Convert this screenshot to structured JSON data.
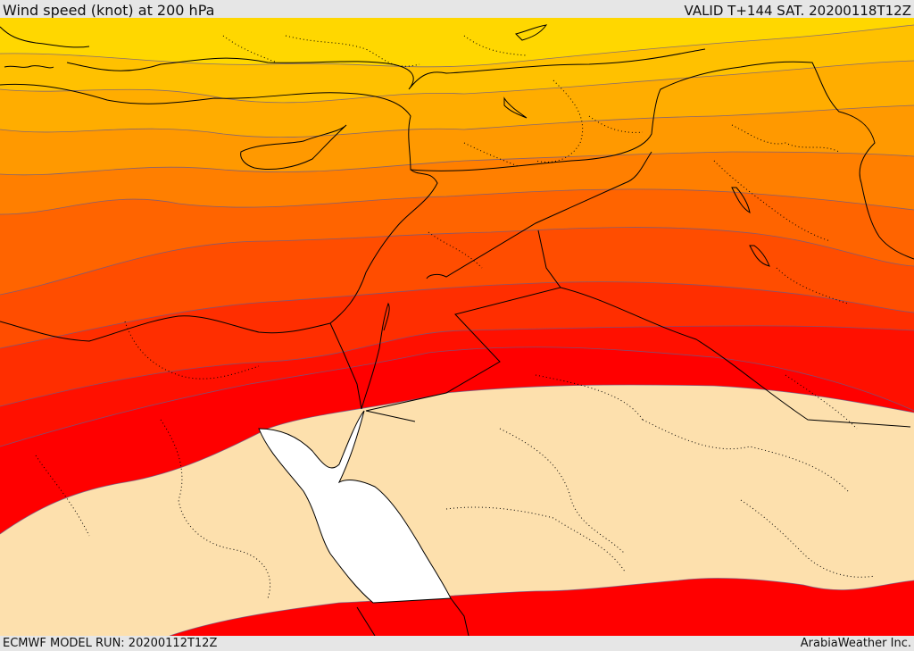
{
  "header": {
    "title": "Wind speed (knot) at 200 hPa",
    "valid": "VALID T+144 SAT. 20200118T12Z"
  },
  "footer": {
    "model_run": "ECMWF MODEL RUN: 20200112T12Z",
    "credit": "ArabiaWeather Inc."
  },
  "map": {
    "variable": "wind speed",
    "pressure_level_hPa": 200,
    "units": "knot",
    "palette": [
      "#ffd700",
      "#ffc100",
      "#ffad00",
      "#ff9900",
      "#ff7f00",
      "#ff6400",
      "#ff4d00",
      "#ff2e00",
      "#ff1000",
      "#ff0000",
      "#fde0ad"
    ],
    "sea_color": "#ffffff"
  }
}
